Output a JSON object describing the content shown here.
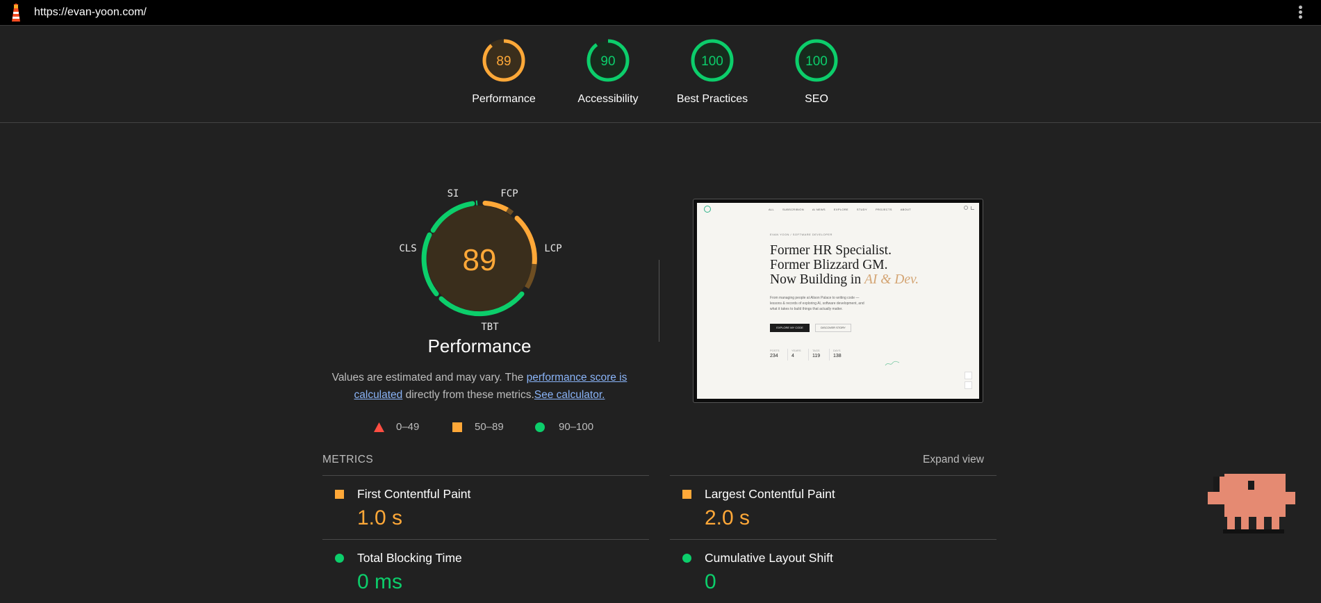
{
  "browser": {
    "url": "https://evan-yoon.com/"
  },
  "summary": {
    "gauges": [
      {
        "label": "Performance",
        "score": "89",
        "color": "#ffa838"
      },
      {
        "label": "Accessibility",
        "score": "90",
        "color": "#0cce6b"
      },
      {
        "label": "Best Practices",
        "score": "100",
        "color": "#0cce6b"
      },
      {
        "label": "SEO",
        "score": "100",
        "color": "#0cce6b"
      }
    ]
  },
  "performance": {
    "score": "89",
    "title": "Performance",
    "segments": [
      "SI",
      "FCP",
      "LCP",
      "TBT",
      "CLS"
    ],
    "note_prefix": "Values are estimated and may vary. The ",
    "note_link1": "performance score is calculated",
    "note_middle": " directly from these metrics.",
    "note_link2": "See calculator."
  },
  "legend": [
    {
      "shape": "triangle",
      "color": "#ff4e42",
      "range": "0–49"
    },
    {
      "shape": "square",
      "color": "#ffa838",
      "range": "50–89"
    },
    {
      "shape": "circle",
      "color": "#0cce6b",
      "range": "90–100"
    }
  ],
  "screenshot": {
    "nav": [
      "ALL",
      "SUBSCRIBION",
      "AI NEWS",
      "EXPLORE",
      "STUDY",
      "PROJECTS",
      "ABOUT"
    ],
    "eyebrow": "EVAN YOON / SOFTWARE DEVELOPER",
    "headline1": "Former HR Specialist.",
    "headline2": "Former Blizzard GM.",
    "headline3": "Now Building in",
    "headline_accent": "AI & Dev.",
    "body1": "From managing people at Alison Palace to writing code —",
    "body2": "lessons & records of exploring AI, software development, and",
    "body3": "what it takes to build things that actually matter.",
    "btn_primary": "EXPLORE MY CODE",
    "btn_secondary": "DISCOVER STORY",
    "stats": [
      {
        "label": "POSTS",
        "value": "234"
      },
      {
        "label": "YEARS",
        "value": "4"
      },
      {
        "label": "TAGS",
        "value": "119"
      },
      {
        "label": "DAYS",
        "value": "138"
      }
    ]
  },
  "metrics": {
    "heading": "METRICS",
    "expand_label": "Expand view",
    "items": [
      {
        "name": "First Contentful Paint",
        "value": "1.0 s",
        "status": "average",
        "color": "#ffa838"
      },
      {
        "name": "Largest Contentful Paint",
        "value": "2.0 s",
        "status": "average",
        "color": "#ffa838"
      },
      {
        "name": "Total Blocking Time",
        "value": "0 ms",
        "status": "pass",
        "color": "#0cce6b"
      },
      {
        "name": "Cumulative Layout Shift",
        "value": "0",
        "status": "pass",
        "color": "#0cce6b"
      }
    ]
  }
}
